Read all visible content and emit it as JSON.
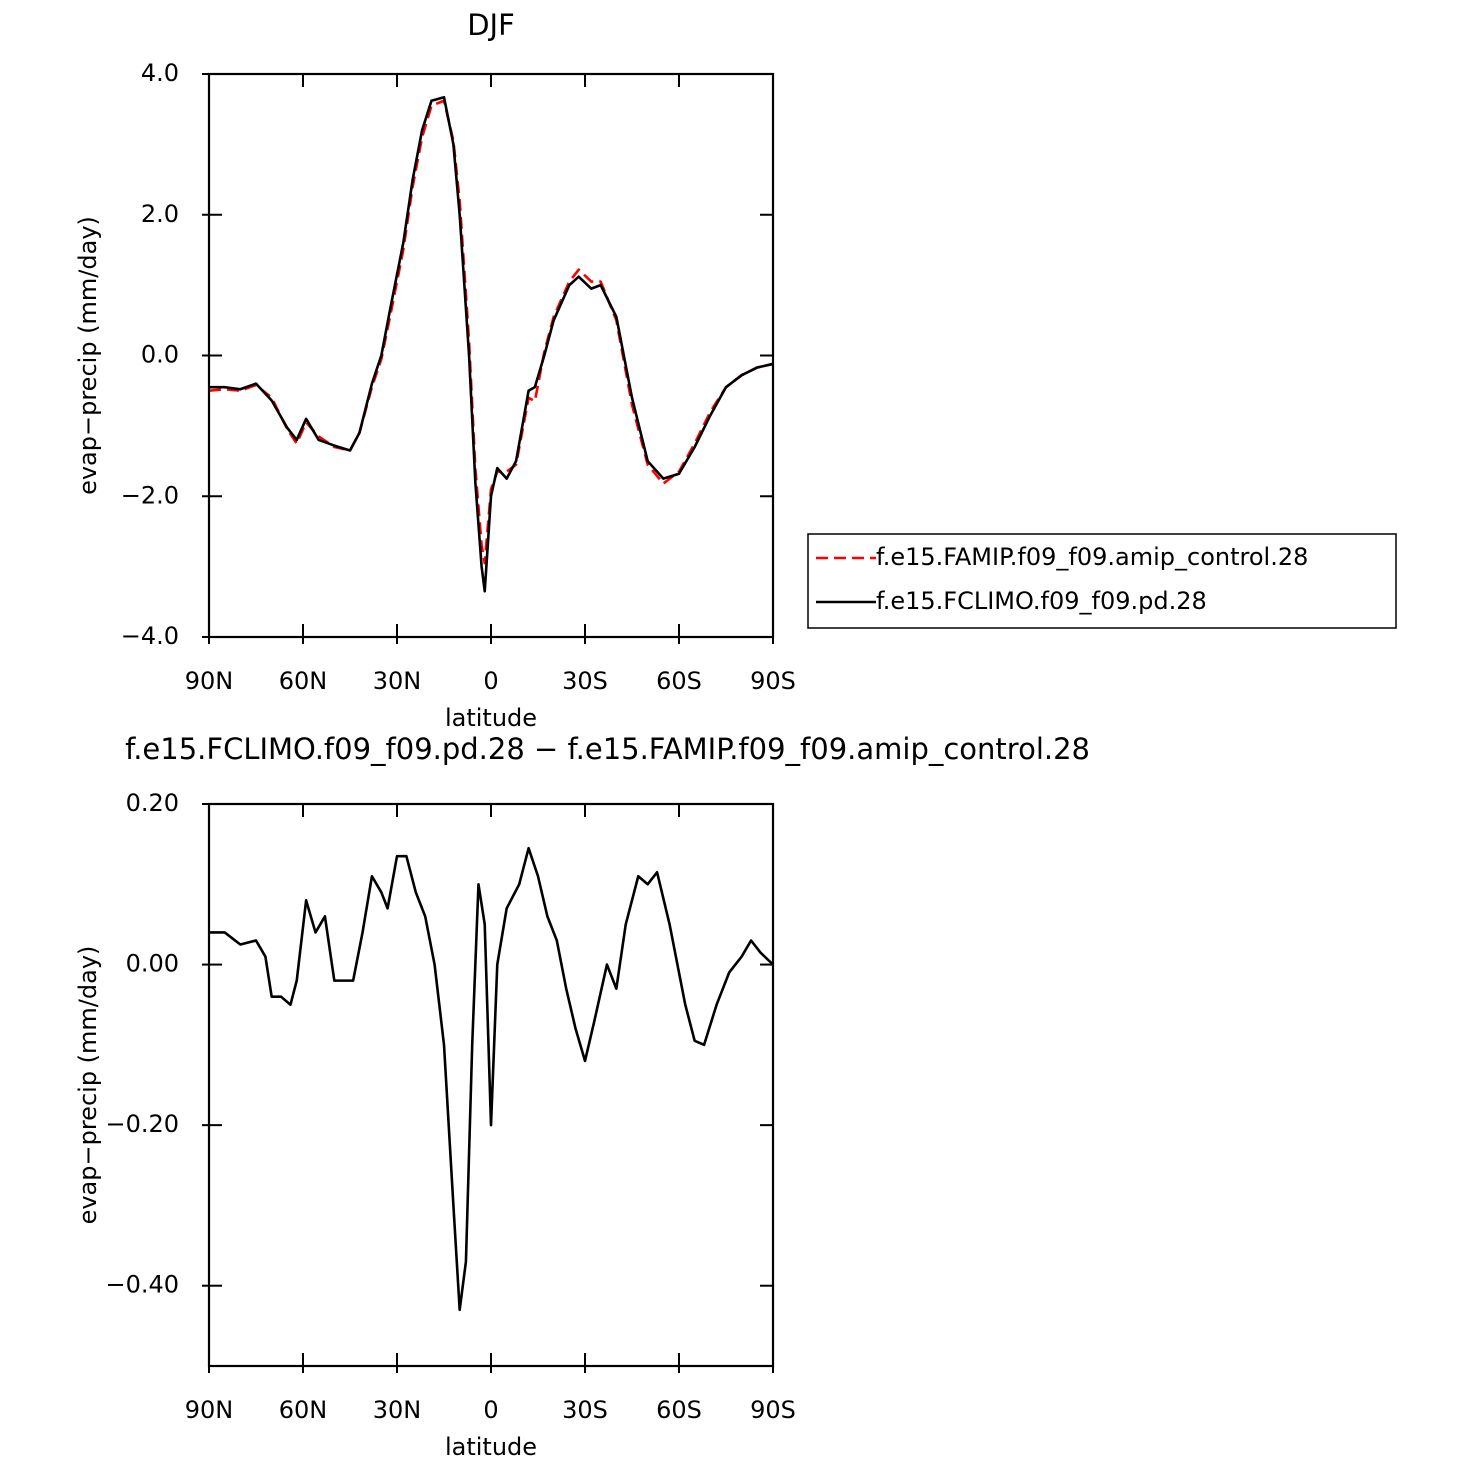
{
  "chart_data": [
    {
      "type": "line",
      "title": "DJF",
      "x_label": "latitude",
      "y_label": "evap−precip (mm/day)",
      "x": [
        90,
        85,
        80,
        75,
        70,
        65,
        62,
        59,
        55,
        50,
        45,
        42,
        38,
        35,
        32,
        28,
        25,
        22,
        19,
        15,
        12,
        10,
        7,
        5,
        3,
        2,
        0,
        -2,
        -5,
        -8,
        -12,
        -14,
        -17,
        -20,
        -25,
        -28,
        -32,
        -35,
        -40,
        -45,
        -50,
        -55,
        -60,
        -65,
        -70,
        -75,
        -80,
        -85,
        -90
      ],
      "series": [
        {
          "name": "f.e15.FAMIP.f09_f09.amip_control.28",
          "color": "#ff0000",
          "dash": "dashed",
          "values": [
            -0.5,
            -0.48,
            -0.5,
            -0.42,
            -0.6,
            -1.05,
            -1.25,
            -0.95,
            -1.15,
            -1.3,
            -1.35,
            -1.1,
            -0.45,
            -0.05,
            0.6,
            1.5,
            2.4,
            3.1,
            3.55,
            3.62,
            3.05,
            2.2,
            0.2,
            -1.6,
            -2.7,
            -2.95,
            -1.9,
            -1.65,
            -1.65,
            -1.55,
            -0.6,
            -0.65,
            0.05,
            0.55,
            1.05,
            1.22,
            1.05,
            1.05,
            0.5,
            -0.7,
            -1.55,
            -1.82,
            -1.65,
            -1.25,
            -0.8,
            -0.45,
            -0.28,
            -0.17,
            -0.12
          ]
        },
        {
          "name": "f.e15.FCLIMO.f09_f09.pd.28",
          "color": "#000000",
          "dash": "solid",
          "values": [
            -0.45,
            -0.45,
            -0.48,
            -0.4,
            -0.64,
            -1.03,
            -1.2,
            -0.9,
            -1.2,
            -1.28,
            -1.35,
            -1.1,
            -0.4,
            0.0,
            0.7,
            1.6,
            2.5,
            3.2,
            3.62,
            3.67,
            3.0,
            2.0,
            0.0,
            -1.8,
            -3.0,
            -3.35,
            -2.0,
            -1.6,
            -1.75,
            -1.5,
            -0.5,
            -0.45,
            0.0,
            0.5,
            1.0,
            1.12,
            0.95,
            1.0,
            0.55,
            -0.6,
            -1.5,
            -1.75,
            -1.68,
            -1.3,
            -0.85,
            -0.45,
            -0.28,
            -0.17,
            -0.12
          ]
        }
      ],
      "xlim": [
        90,
        -90
      ],
      "xticks": [
        {
          "value": 90,
          "label": "90N"
        },
        {
          "value": 60,
          "label": "60N"
        },
        {
          "value": 30,
          "label": "30N"
        },
        0,
        {
          "value": -30,
          "label": "30S"
        },
        {
          "value": -60,
          "label": "60S"
        },
        {
          "value": -90,
          "label": "90S"
        }
      ],
      "ylim": [
        -4,
        4
      ],
      "yticks": [
        {
          "value": 4,
          "label": "4.0"
        },
        {
          "value": 2,
          "label": "2.0"
        },
        {
          "value": 0,
          "label": "0.0"
        },
        {
          "value": -2,
          "label": "−2.0"
        },
        {
          "value": -4,
          "label": "−4.0"
        }
      ],
      "legend": "right",
      "grid": false
    },
    {
      "type": "line",
      "title": "f.e15.FCLIMO.f09_f09.pd.28 − f.e15.FAMIP.f09_f09.amip_control.28",
      "x_label": "latitude",
      "y_label": "evap−precip (mm/day)",
      "x": [
        90,
        85,
        80,
        75,
        72,
        70,
        67,
        64,
        62,
        59,
        56,
        53,
        50,
        47,
        44,
        41,
        38,
        35,
        33,
        30,
        27,
        24,
        21,
        18,
        15,
        12,
        10,
        8,
        6,
        4,
        2,
        0,
        -2,
        -5,
        -9,
        -12,
        -15,
        -18,
        -21,
        -24,
        -27,
        -30,
        -33,
        -37,
        -40,
        -43,
        -47,
        -50,
        -53,
        -57,
        -62,
        -65,
        -68,
        -72,
        -76,
        -80,
        -83,
        -86,
        -90
      ],
      "series": [
        {
          "color": "#000000",
          "dash": "solid",
          "values": [
            0.04,
            0.04,
            0.025,
            0.03,
            0.01,
            -0.04,
            -0.04,
            -0.05,
            -0.02,
            0.08,
            0.04,
            0.06,
            -0.02,
            -0.02,
            -0.02,
            0.04,
            0.11,
            0.09,
            0.07,
            0.135,
            0.135,
            0.09,
            0.06,
            0.0,
            -0.1,
            -0.3,
            -0.43,
            -0.37,
            -0.1,
            0.1,
            0.05,
            -0.2,
            0.0,
            0.07,
            0.1,
            0.145,
            0.11,
            0.06,
            0.03,
            -0.03,
            -0.08,
            -0.12,
            -0.07,
            0.0,
            -0.03,
            0.05,
            0.11,
            0.1,
            0.115,
            0.05,
            -0.05,
            -0.095,
            -0.1,
            -0.05,
            -0.01,
            0.01,
            0.03,
            0.015,
            0.0
          ]
        }
      ],
      "xlim": [
        90,
        -90
      ],
      "xticks": [
        {
          "value": 90,
          "label": "90N"
        },
        {
          "value": 60,
          "label": "60N"
        },
        {
          "value": 30,
          "label": "30N"
        },
        0,
        {
          "value": -30,
          "label": "30S"
        },
        {
          "value": -60,
          "label": "60S"
        },
        {
          "value": -90,
          "label": "90S"
        }
      ],
      "ylim": [
        -0.5,
        0.2
      ],
      "yticks": [
        {
          "value": 0.2,
          "label": "0.20"
        },
        {
          "value": 0,
          "label": "0.00"
        },
        {
          "value": -0.2,
          "label": "−0.20"
        },
        {
          "value": -0.4,
          "label": "−0.40"
        }
      ],
      "grid": false
    }
  ]
}
